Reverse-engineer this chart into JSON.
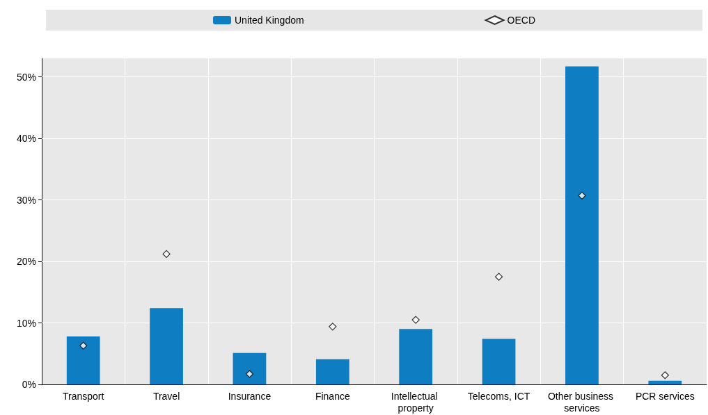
{
  "chart_data": {
    "type": "bar",
    "categories": [
      "Transport",
      "Travel",
      "Insurance",
      "Finance",
      "Intellectual property",
      "Telecoms, ICT",
      "Other business services",
      "PCR services"
    ],
    "series": [
      {
        "name": "United Kingdom",
        "color": "#0e7dc2",
        "values": [
          7.8,
          12.4,
          5.1,
          4.1,
          9.0,
          7.4,
          51.7,
          0.6
        ]
      },
      {
        "name": "OECD",
        "type": "scatter",
        "marker": "diamond",
        "color": "#000000",
        "values": [
          6.3,
          21.2,
          1.7,
          9.4,
          10.5,
          17.5,
          30.7,
          1.5
        ]
      }
    ],
    "ylim": [
      0,
      53
    ],
    "yticks": [
      {
        "value": 0,
        "label": "0%"
      },
      {
        "value": 10,
        "label": "10%"
      },
      {
        "value": 20,
        "label": "20%"
      },
      {
        "value": 30,
        "label": "30%"
      },
      {
        "value": 40,
        "label": "40%"
      },
      {
        "value": 50,
        "label": "50%"
      }
    ],
    "grid": true,
    "legend": "top"
  }
}
